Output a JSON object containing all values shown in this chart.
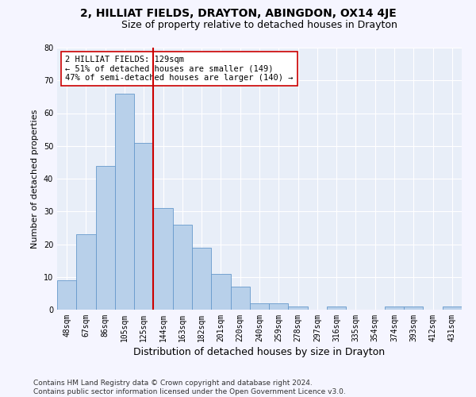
{
  "title": "2, HILLIAT FIELDS, DRAYTON, ABINGDON, OX14 4JE",
  "subtitle": "Size of property relative to detached houses in Drayton",
  "xlabel": "Distribution of detached houses by size in Drayton",
  "ylabel": "Number of detached properties",
  "categories": [
    "48sqm",
    "67sqm",
    "86sqm",
    "105sqm",
    "125sqm",
    "144sqm",
    "163sqm",
    "182sqm",
    "201sqm",
    "220sqm",
    "240sqm",
    "259sqm",
    "278sqm",
    "297sqm",
    "316sqm",
    "335sqm",
    "354sqm",
    "374sqm",
    "393sqm",
    "412sqm",
    "431sqm"
  ],
  "values": [
    9,
    23,
    44,
    66,
    51,
    31,
    26,
    19,
    11,
    7,
    2,
    2,
    1,
    0,
    1,
    0,
    0,
    1,
    1,
    0,
    1
  ],
  "bar_color": "#b8d0ea",
  "bar_edge_color": "#6699cc",
  "vline_index": 4,
  "vline_color": "#cc0000",
  "annotation_line1": "2 HILLIAT FIELDS: 129sqm",
  "annotation_line2": "← 51% of detached houses are smaller (149)",
  "annotation_line3": "47% of semi-detached houses are larger (140) →",
  "annotation_box_color": "#ffffff",
  "annotation_box_edge": "#cc0000",
  "ylim": [
    0,
    80
  ],
  "yticks": [
    0,
    10,
    20,
    30,
    40,
    50,
    60,
    70,
    80
  ],
  "footer": "Contains HM Land Registry data © Crown copyright and database right 2024.\nContains public sector information licensed under the Open Government Licence v3.0.",
  "bg_color": "#e8eef8",
  "fig_bg_color": "#f5f5ff",
  "title_fontsize": 10,
  "subtitle_fontsize": 9,
  "xlabel_fontsize": 9,
  "ylabel_fontsize": 8,
  "tick_fontsize": 7,
  "annot_fontsize": 7.5,
  "footer_fontsize": 6.5
}
